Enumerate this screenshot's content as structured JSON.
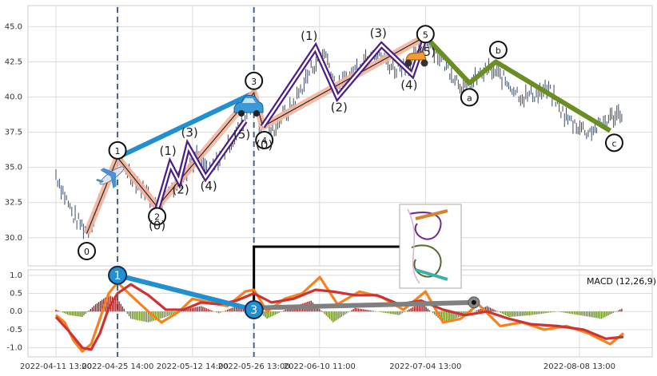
{
  "chart_data": {
    "type": "line",
    "title": "",
    "xlabel": "",
    "ylabel": "",
    "x_tick_labels": [
      "2022-04-11 13:00",
      "2022-04-25 14:00",
      "2022-05-12 14:00",
      "2022-05-26 13:00",
      "2022-06-10 11:00",
      "2022-07-04 13:00",
      "2022-08-08 13:00"
    ],
    "price_panel": {
      "ylim": [
        28,
        46.5
      ],
      "yticks": [
        "45.0",
        "42.5",
        "40.0",
        "37.5",
        "35.0",
        "32.5",
        "30.0"
      ],
      "grid": true,
      "price_series_approx": [
        {
          "x": "2022-04-11",
          "y": 34.5
        },
        {
          "x": "2022-04-13",
          "y": 33.0
        },
        {
          "x": "2022-04-15",
          "y": 31.5
        },
        {
          "x": "2022-04-18",
          "y": 30.5
        },
        {
          "x": "2022-04-20",
          "y": 31.8
        },
        {
          "x": "2022-04-22",
          "y": 33.5
        },
        {
          "x": "2022-04-25",
          "y": 35.7
        },
        {
          "x": "2022-04-28",
          "y": 34.5
        },
        {
          "x": "2022-05-02",
          "y": 33.0
        },
        {
          "x": "2022-05-04",
          "y": 32.2
        },
        {
          "x": "2022-05-07",
          "y": 33.5
        },
        {
          "x": "2022-05-10",
          "y": 34.5
        },
        {
          "x": "2022-05-13",
          "y": 35.8
        },
        {
          "x": "2022-05-16",
          "y": 34.6
        },
        {
          "x": "2022-05-19",
          "y": 36.0
        },
        {
          "x": "2022-05-22",
          "y": 37.5
        },
        {
          "x": "2022-05-24",
          "y": 38.5
        },
        {
          "x": "2022-05-26",
          "y": 40.3
        },
        {
          "x": "2022-05-28",
          "y": 36.5
        },
        {
          "x": "2022-05-31",
          "y": 38.0
        },
        {
          "x": "2022-06-04",
          "y": 39.5
        },
        {
          "x": "2022-06-08",
          "y": 42.0
        },
        {
          "x": "2022-06-11",
          "y": 43.3
        },
        {
          "x": "2022-06-14",
          "y": 40.5
        },
        {
          "x": "2022-06-18",
          "y": 42.0
        },
        {
          "x": "2022-06-22",
          "y": 43.4
        },
        {
          "x": "2022-06-27",
          "y": 42.0
        },
        {
          "x": "2022-07-01",
          "y": 42.5
        },
        {
          "x": "2022-07-04",
          "y": 44.3
        },
        {
          "x": "2022-07-08",
          "y": 42.5
        },
        {
          "x": "2022-07-13",
          "y": 40.5
        },
        {
          "x": "2022-07-18",
          "y": 42.0
        },
        {
          "x": "2022-07-21",
          "y": 41.5
        },
        {
          "x": "2022-07-26",
          "y": 40.0
        },
        {
          "x": "2022-08-01",
          "y": 40.5
        },
        {
          "x": "2022-08-05",
          "y": 38.5
        },
        {
          "x": "2022-08-10",
          "y": 37.5
        },
        {
          "x": "2022-08-15",
          "y": 38.5
        },
        {
          "x": "2022-08-18",
          "y": 39.0
        }
      ],
      "major_wave_path": [
        {
          "x": "2022-04-18",
          "y": 30.3,
          "label": "0"
        },
        {
          "x": "2022-04-25",
          "y": 35.7,
          "label": "1"
        },
        {
          "x": "2022-05-04",
          "y": 32.2,
          "label": "2"
        },
        {
          "x": "2022-05-26",
          "y": 40.3,
          "label": "3"
        },
        {
          "x": "2022-05-28",
          "y": 37.9,
          "label": "4"
        },
        {
          "x": "2022-07-04",
          "y": 44.3,
          "label": "5"
        }
      ],
      "correction_path": [
        {
          "x": "2022-07-04",
          "y": 44.3
        },
        {
          "x": "2022-07-14",
          "y": 41.0,
          "label": "a"
        },
        {
          "x": "2022-07-20",
          "y": 42.5,
          "label": "b"
        },
        {
          "x": "2022-08-15",
          "y": 37.6,
          "label": "c"
        }
      ],
      "subwave_labels_1": [
        {
          "x": "2022-05-04",
          "y": 32.0,
          "label": "(0)"
        },
        {
          "x": "2022-05-07",
          "y": 35.2,
          "label": "(1)"
        },
        {
          "x": "2022-05-09",
          "y": 34.0,
          "label": "(2)"
        },
        {
          "x": "2022-05-11",
          "y": 36.5,
          "label": "(3)"
        },
        {
          "x": "2022-05-15",
          "y": 34.3,
          "label": "(4)"
        },
        {
          "x": "2022-05-24",
          "y": 38.3,
          "label": "(5)"
        }
      ],
      "subwave_labels_2": [
        {
          "x": "2022-05-28",
          "y": 37.9,
          "label": "(0)"
        },
        {
          "x": "2022-06-09",
          "y": 43.5,
          "label": "(1)"
        },
        {
          "x": "2022-06-14",
          "y": 40.0,
          "label": "(2)"
        },
        {
          "x": "2022-06-24",
          "y": 43.7,
          "label": "(3)"
        },
        {
          "x": "2022-07-01",
          "y": 41.6,
          "label": "(4)"
        },
        {
          "x": "2022-07-04",
          "y": 44.3,
          "label": "(5)"
        }
      ],
      "blue_trend_line": [
        {
          "x": "2022-04-25",
          "y": 35.7
        },
        {
          "x": "2022-05-26",
          "y": 40.3
        }
      ],
      "vertical_dashed_lines": [
        "2022-04-25",
        "2022-05-26"
      ],
      "icons": [
        "airplane-icon",
        "car-icon",
        "scooter-icon",
        "inset-thumbnail"
      ]
    },
    "macd_panel": {
      "legend": "MACD (12,26,9)",
      "ylim": [
        -1.25,
        1.15
      ],
      "yticks": [
        "1.0",
        "0.5",
        "0.0",
        "-0.5",
        "-1.0"
      ],
      "grid": true,
      "series": [
        {
          "values": [
            {
              "x": "2022-04-11",
              "y": -0.1
            },
            {
              "x": "2022-04-13",
              "y": -0.3
            },
            {
              "x": "2022-04-15",
              "y": -0.8
            },
            {
              "x": "2022-04-17",
              "y": -1.1
            },
            {
              "x": "2022-04-19",
              "y": -0.9
            },
            {
              "x": "2022-04-21",
              "y": -0.2
            },
            {
              "x": "2022-04-23",
              "y": 0.5
            },
            {
              "x": "2022-04-25",
              "y": 0.8
            },
            {
              "x": "2022-04-28",
              "y": 0.45
            },
            {
              "x": "2022-05-02",
              "y": 0.0
            },
            {
              "x": "2022-05-05",
              "y": -0.3
            },
            {
              "x": "2022-05-09",
              "y": 0.0
            },
            {
              "x": "2022-05-12",
              "y": 0.35
            },
            {
              "x": "2022-05-16",
              "y": 0.25
            },
            {
              "x": "2022-05-20",
              "y": 0.15
            },
            {
              "x": "2022-05-24",
              "y": 0.55
            },
            {
              "x": "2022-05-26",
              "y": 0.6
            },
            {
              "x": "2022-05-29",
              "y": 0.0
            },
            {
              "x": "2022-06-02",
              "y": 0.35
            },
            {
              "x": "2022-06-06",
              "y": 0.5
            },
            {
              "x": "2022-06-10",
              "y": 0.95
            },
            {
              "x": "2022-06-14",
              "y": 0.2
            },
            {
              "x": "2022-06-19",
              "y": 0.55
            },
            {
              "x": "2022-06-24",
              "y": 0.4
            },
            {
              "x": "2022-06-29",
              "y": 0.05
            },
            {
              "x": "2022-07-04",
              "y": 0.55
            },
            {
              "x": "2022-07-08",
              "y": -0.3
            },
            {
              "x": "2022-07-12",
              "y": -0.2
            },
            {
              "x": "2022-07-16",
              "y": 0.2
            },
            {
              "x": "2022-07-21",
              "y": -0.4
            },
            {
              "x": "2022-07-26",
              "y": -0.3
            },
            {
              "x": "2022-07-31",
              "y": -0.5
            },
            {
              "x": "2022-08-05",
              "y": -0.4
            },
            {
              "x": "2022-08-10",
              "y": -0.6
            },
            {
              "x": "2022-08-15",
              "y": -0.9
            },
            {
              "x": "2022-08-18",
              "y": -0.6
            }
          ]
        },
        {
          "values": [
            {
              "x": "2022-04-11",
              "y": -0.15
            },
            {
              "x": "2022-04-14",
              "y": -0.55
            },
            {
              "x": "2022-04-17",
              "y": -1.0
            },
            {
              "x": "2022-04-19",
              "y": -1.05
            },
            {
              "x": "2022-04-21",
              "y": -0.6
            },
            {
              "x": "2022-04-23",
              "y": 0.1
            },
            {
              "x": "2022-04-25",
              "y": 0.5
            },
            {
              "x": "2022-04-28",
              "y": 0.75
            },
            {
              "x": "2022-05-02",
              "y": 0.45
            },
            {
              "x": "2022-05-06",
              "y": 0.05
            },
            {
              "x": "2022-05-10",
              "y": 0.05
            },
            {
              "x": "2022-05-14",
              "y": 0.25
            },
            {
              "x": "2022-05-18",
              "y": 0.2
            },
            {
              "x": "2022-05-22",
              "y": 0.3
            },
            {
              "x": "2022-05-26",
              "y": 0.5
            },
            {
              "x": "2022-05-30",
              "y": 0.25
            },
            {
              "x": "2022-06-04",
              "y": 0.35
            },
            {
              "x": "2022-06-09",
              "y": 0.6
            },
            {
              "x": "2022-06-13",
              "y": 0.55
            },
            {
              "x": "2022-06-18",
              "y": 0.45
            },
            {
              "x": "2022-06-23",
              "y": 0.45
            },
            {
              "x": "2022-06-28",
              "y": 0.2
            },
            {
              "x": "2022-07-03",
              "y": 0.3
            },
            {
              "x": "2022-07-08",
              "y": 0.05
            },
            {
              "x": "2022-07-13",
              "y": -0.1
            },
            {
              "x": "2022-07-18",
              "y": 0.0
            },
            {
              "x": "2022-07-23",
              "y": -0.2
            },
            {
              "x": "2022-07-28",
              "y": -0.35
            },
            {
              "x": "2022-08-03",
              "y": -0.4
            },
            {
              "x": "2022-08-09",
              "y": -0.5
            },
            {
              "x": "2022-08-14",
              "y": -0.75
            },
            {
              "x": "2022-08-18",
              "y": -0.7
            }
          ]
        }
      ],
      "histogram_approx": [
        {
          "x": "2022-04-11",
          "y": 0.05
        },
        {
          "x": "2022-04-14",
          "y": -0.1
        },
        {
          "x": "2022-04-17",
          "y": -0.15
        },
        {
          "x": "2022-04-20",
          "y": 0.2
        },
        {
          "x": "2022-04-23",
          "y": 0.45
        },
        {
          "x": "2022-04-25",
          "y": 0.35
        },
        {
          "x": "2022-04-28",
          "y": -0.2
        },
        {
          "x": "2022-05-02",
          "y": -0.3
        },
        {
          "x": "2022-05-06",
          "y": -0.15
        },
        {
          "x": "2022-05-10",
          "y": 0.05
        },
        {
          "x": "2022-05-14",
          "y": 0.15
        },
        {
          "x": "2022-05-18",
          "y": -0.05
        },
        {
          "x": "2022-05-22",
          "y": 0.15
        },
        {
          "x": "2022-05-26",
          "y": 0.1
        },
        {
          "x": "2022-05-29",
          "y": -0.2
        },
        {
          "x": "2022-06-03",
          "y": 0.1
        },
        {
          "x": "2022-06-08",
          "y": 0.3
        },
        {
          "x": "2022-06-13",
          "y": -0.3
        },
        {
          "x": "2022-06-18",
          "y": 0.1
        },
        {
          "x": "2022-06-23",
          "y": 0.0
        },
        {
          "x": "2022-06-28",
          "y": -0.1
        },
        {
          "x": "2022-07-03",
          "y": 0.25
        },
        {
          "x": "2022-07-08",
          "y": -0.3
        },
        {
          "x": "2022-07-13",
          "y": -0.1
        },
        {
          "x": "2022-07-18",
          "y": 0.15
        },
        {
          "x": "2022-07-23",
          "y": -0.15
        },
        {
          "x": "2022-07-28",
          "y": -0.1
        },
        {
          "x": "2022-08-03",
          "y": 0.0
        },
        {
          "x": "2022-08-08",
          "y": -0.1
        },
        {
          "x": "2022-08-13",
          "y": -0.2
        },
        {
          "x": "2022-08-18",
          "y": 0.1
        }
      ],
      "blue_line": [
        {
          "x": "2022-04-25",
          "y": 1.0,
          "label": "1"
        },
        {
          "x": "2022-05-26",
          "y": 0.05,
          "label": "3"
        }
      ],
      "gray_line": [
        {
          "x": "2022-05-26",
          "y": 0.1
        },
        {
          "x": "2022-07-15",
          "y": 0.25
        }
      ]
    },
    "colors": {
      "price_bars": "#3c4b66",
      "wave_fill": "#f4b49c",
      "wave_line": "#2b2b2b",
      "sub_wave": "#4b1f86",
      "trend_blue": "#2290cf",
      "correction": "#6b8e23",
      "vline": "#4a6280",
      "macd_orange": "#f5821f",
      "macd_red": "#cc3333",
      "hist_pos": "#a02020",
      "hist_neg": "#6b8e23",
      "gray_line": "#808080"
    }
  }
}
